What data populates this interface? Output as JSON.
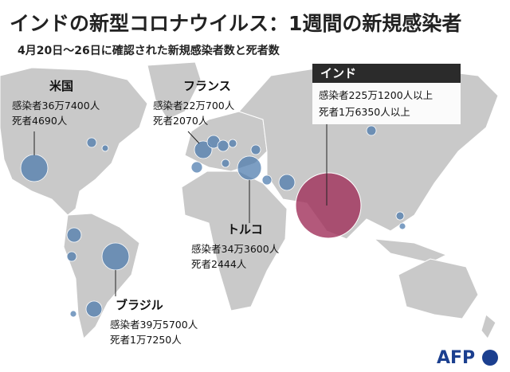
{
  "header": {
    "title": "インドの新型コロナウイルス：1週間の新規感染者",
    "subtitle": "4月20日～26日に確認された新規感染者数と死者数"
  },
  "callouts": [
    {
      "name": "米国",
      "lines": [
        "感染者36万7400人",
        "死者4690人"
      ]
    },
    {
      "name": "フランス",
      "lines": [
        "感染者22万700人",
        "死者2070人"
      ]
    },
    {
      "name": "インド",
      "lines": [
        "感染者225万1200人以上",
        "死者1万6350人以上"
      ]
    },
    {
      "name": "トルコ",
      "lines": [
        "感染者34万3600人",
        "死者2444人"
      ]
    },
    {
      "name": "ブラジル",
      "lines": [
        "感染者39万5700人",
        "死者1万7250人"
      ]
    }
  ],
  "logo": "AFP"
}
